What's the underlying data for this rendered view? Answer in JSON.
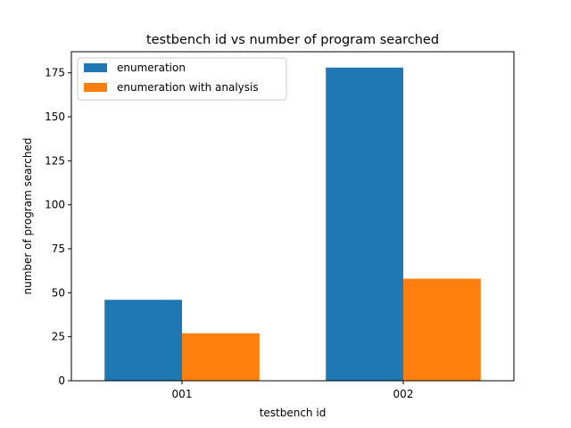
{
  "chart_data": {
    "type": "bar",
    "title": "testbench id vs number of program searched",
    "xlabel": "testbench id",
    "ylabel": "number of program searched",
    "categories": [
      "001",
      "002"
    ],
    "series": [
      {
        "name": "enumeration",
        "color": "#1f77b4",
        "values": [
          46,
          178
        ]
      },
      {
        "name": "enumeration with analysis",
        "color": "#ff7f0e",
        "values": [
          27,
          58
        ]
      }
    ],
    "ylim": [
      0,
      187
    ],
    "yticks": [
      0,
      25,
      50,
      75,
      100,
      125,
      150,
      175
    ],
    "legend": "top-left",
    "grid": false
  }
}
